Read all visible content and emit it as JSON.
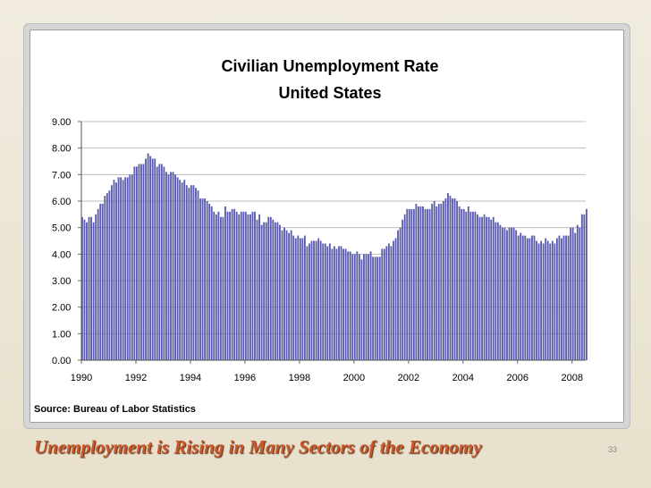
{
  "slide": {
    "footer_title": "Unemployment is Rising in Many Sectors of the Economy",
    "page_number": "33",
    "source": "Source:  Bureau of Labor Statistics",
    "colors": {
      "bar": "#5a5ab0",
      "title": "#c9582b",
      "grid": "#bdbdbd",
      "background": "#ece6d4"
    }
  },
  "chart_data": {
    "type": "bar",
    "title": "Civilian Unemployment Rate",
    "subtitle": "United States",
    "xlabel": "",
    "ylabel": "",
    "ylim": [
      0,
      9
    ],
    "xlim": [
      1990,
      2008.5
    ],
    "grid": true,
    "y_ticks": [
      "0.00",
      "1.00",
      "2.00",
      "3.00",
      "4.00",
      "5.00",
      "6.00",
      "7.00",
      "8.00",
      "9.00"
    ],
    "x_ticks": [
      "1990",
      "1992",
      "1994",
      "1996",
      "1998",
      "2000",
      "2002",
      "2004",
      "2006",
      "2008"
    ],
    "frequency": "monthly",
    "start": "1990-01",
    "series": [
      {
        "name": "Civilian Unemployment Rate",
        "values": [
          5.4,
          5.3,
          5.2,
          5.4,
          5.4,
          5.2,
          5.5,
          5.7,
          5.9,
          5.9,
          6.2,
          6.3,
          6.4,
          6.6,
          6.8,
          6.7,
          6.9,
          6.9,
          6.8,
          6.9,
          6.9,
          7.0,
          7.0,
          7.3,
          7.3,
          7.4,
          7.4,
          7.4,
          7.6,
          7.8,
          7.7,
          7.6,
          7.6,
          7.3,
          7.4,
          7.4,
          7.3,
          7.1,
          7.0,
          7.1,
          7.1,
          7.0,
          6.9,
          6.8,
          6.7,
          6.8,
          6.6,
          6.5,
          6.6,
          6.6,
          6.5,
          6.4,
          6.1,
          6.1,
          6.1,
          6.0,
          5.9,
          5.8,
          5.6,
          5.5,
          5.6,
          5.4,
          5.4,
          5.8,
          5.6,
          5.6,
          5.7,
          5.7,
          5.6,
          5.5,
          5.6,
          5.6,
          5.6,
          5.5,
          5.5,
          5.6,
          5.6,
          5.3,
          5.5,
          5.1,
          5.2,
          5.2,
          5.4,
          5.4,
          5.3,
          5.2,
          5.2,
          5.1,
          4.9,
          5.0,
          4.9,
          4.8,
          4.9,
          4.7,
          4.6,
          4.7,
          4.6,
          4.6,
          4.7,
          4.3,
          4.4,
          4.5,
          4.5,
          4.5,
          4.6,
          4.5,
          4.4,
          4.4,
          4.3,
          4.4,
          4.2,
          4.3,
          4.2,
          4.3,
          4.3,
          4.2,
          4.2,
          4.1,
          4.1,
          4.0,
          4.0,
          4.1,
          4.0,
          3.8,
          4.0,
          4.0,
          4.0,
          4.1,
          3.9,
          3.9,
          3.9,
          3.9,
          4.2,
          4.2,
          4.3,
          4.4,
          4.3,
          4.5,
          4.6,
          4.9,
          5.0,
          5.3,
          5.5,
          5.7,
          5.7,
          5.7,
          5.7,
          5.9,
          5.8,
          5.8,
          5.8,
          5.7,
          5.7,
          5.7,
          5.9,
          6.0,
          5.8,
          5.9,
          5.9,
          6.0,
          6.1,
          6.3,
          6.2,
          6.1,
          6.1,
          6.0,
          5.8,
          5.7,
          5.7,
          5.6,
          5.8,
          5.6,
          5.6,
          5.6,
          5.5,
          5.4,
          5.4,
          5.5,
          5.4,
          5.4,
          5.3,
          5.4,
          5.2,
          5.2,
          5.1,
          5.0,
          5.0,
          4.9,
          5.0,
          5.0,
          5.0,
          4.9,
          4.7,
          4.8,
          4.7,
          4.7,
          4.6,
          4.6,
          4.7,
          4.7,
          4.5,
          4.4,
          4.5,
          4.4,
          4.6,
          4.5,
          4.4,
          4.5,
          4.4,
          4.6,
          4.7,
          4.6,
          4.7,
          4.7,
          4.7,
          5.0,
          5.0,
          4.8,
          5.1,
          5.0,
          5.5,
          5.5,
          5.7
        ]
      }
    ]
  }
}
